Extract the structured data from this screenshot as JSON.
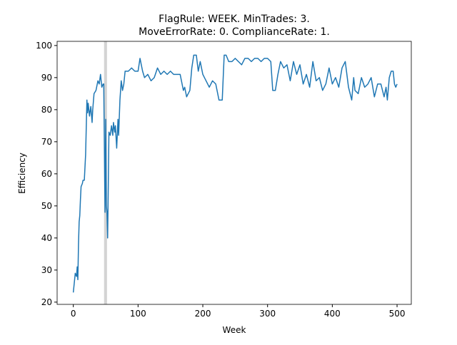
{
  "chart_data": {
    "type": "line",
    "title": [
      "FlagRule: WEEK. MinTrades: 3.",
      "MoveErrorRate: 0. ComplianceRate: 1."
    ],
    "x_label": "Week",
    "y_label": "Efficiency",
    "xlim": [
      -25,
      522
    ],
    "ylim": [
      19.3,
      101.3
    ],
    "xticks": [
      0,
      100,
      200,
      300,
      400,
      500
    ],
    "yticks": [
      20,
      30,
      40,
      50,
      60,
      70,
      80,
      90,
      100
    ],
    "span": [
      47.5,
      52
    ],
    "span_color": "#d3d3d3",
    "series": [
      {
        "color": "#1f77b4",
        "x": [
          0,
          2,
          3,
          5,
          6,
          7,
          8,
          9,
          10,
          11,
          12,
          14,
          15,
          17,
          19,
          21,
          22,
          23,
          25,
          27,
          29,
          30,
          32,
          35,
          38,
          40,
          42,
          44,
          46,
          47,
          48,
          49,
          50,
          51,
          52,
          53,
          54,
          55,
          57,
          59,
          61,
          62,
          64,
          65,
          67,
          69,
          70,
          72,
          74,
          76,
          78,
          80,
          85,
          90,
          95,
          100,
          103,
          107,
          110,
          115,
          120,
          125,
          130,
          135,
          140,
          145,
          150,
          155,
          160,
          165,
          170,
          172,
          175,
          180,
          183,
          186,
          190,
          193,
          196,
          200,
          205,
          210,
          215,
          220,
          225,
          230,
          233,
          236,
          240,
          245,
          250,
          255,
          260,
          265,
          270,
          275,
          280,
          285,
          290,
          295,
          300,
          305,
          308,
          312,
          316,
          320,
          325,
          330,
          335,
          340,
          345,
          350,
          355,
          360,
          365,
          370,
          375,
          380,
          385,
          390,
          395,
          400,
          405,
          410,
          415,
          420,
          425,
          430,
          433,
          435,
          440,
          445,
          450,
          455,
          460,
          465,
          470,
          475,
          480,
          483,
          485,
          488,
          491,
          494,
          496,
          498,
          500
        ],
        "values": [
          23,
          27,
          29,
          28,
          31,
          27,
          38,
          45,
          47,
          52,
          56,
          57,
          58,
          58,
          66,
          83,
          79,
          82,
          78,
          81,
          76,
          80,
          85,
          86,
          89,
          88,
          91,
          87,
          88,
          88,
          68,
          48,
          77,
          50,
          48,
          40,
          56,
          73,
          72,
          75,
          72,
          76,
          73,
          75,
          68,
          77,
          72,
          83,
          89,
          86,
          88,
          92,
          92,
          93,
          92,
          92,
          96,
          92,
          90,
          91,
          89,
          90,
          93,
          91,
          92,
          91,
          92,
          91,
          91,
          91,
          86,
          87,
          84,
          86,
          93,
          97,
          97,
          92,
          95,
          91,
          89,
          87,
          89,
          88,
          83,
          83,
          97,
          97,
          95,
          95,
          96,
          95,
          94,
          96,
          96,
          95,
          96,
          96,
          95,
          96,
          96,
          95,
          86,
          86,
          91,
          95,
          93,
          94,
          89,
          95,
          91,
          94,
          88,
          91,
          87,
          95,
          89,
          90,
          86,
          88,
          93,
          88,
          90,
          87,
          93,
          95,
          87,
          83,
          90,
          86,
          85,
          90,
          87,
          88,
          90,
          84,
          88,
          88,
          84,
          87,
          83,
          90,
          92,
          92,
          88,
          87,
          88
        ]
      }
    ]
  }
}
